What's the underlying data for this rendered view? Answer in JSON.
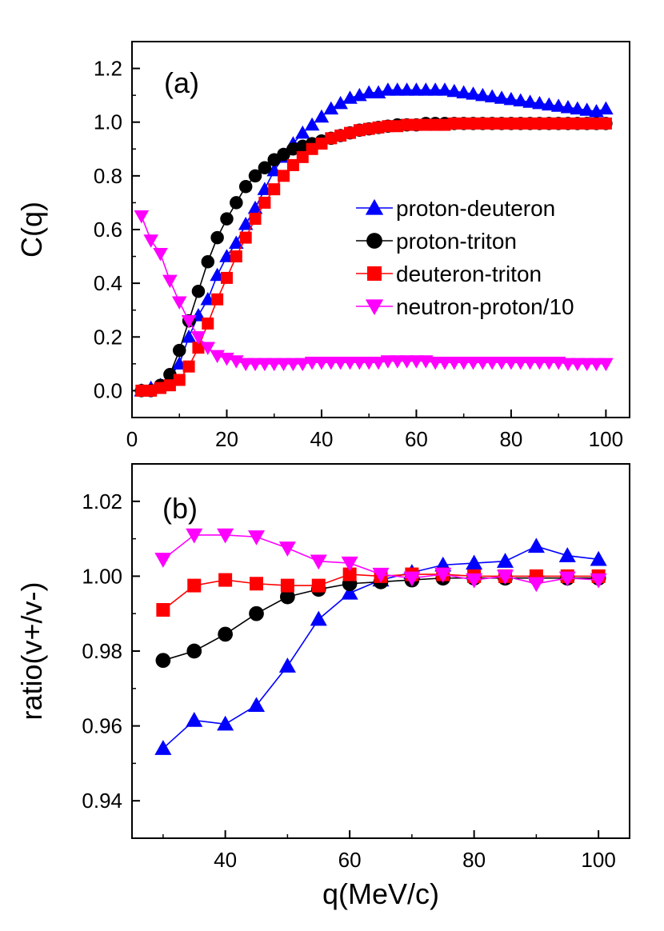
{
  "chart_data": [
    {
      "id": "a",
      "type": "line",
      "panel_label": "(a)",
      "xlabel": "",
      "ylabel": "C(q)",
      "xlim": [
        0,
        105
      ],
      "ylim": [
        -0.1,
        1.3
      ],
      "xticks": [
        0,
        20,
        40,
        60,
        80,
        100
      ],
      "yticks": [
        0.0,
        0.2,
        0.4,
        0.6,
        0.8,
        1.0,
        1.2
      ],
      "xtick_labels": [
        "0",
        "20",
        "40",
        "60",
        "80",
        "100"
      ],
      "ytick_labels": [
        "0.0",
        "0.2",
        "0.4",
        "0.6",
        "0.8",
        "1.0",
        "1.2"
      ],
      "grid": false,
      "legend_position": "right",
      "series": [
        {
          "name": "proton-deuteron",
          "color": "#0000ff",
          "marker": "triangle-up",
          "x": [
            2,
            4,
            6,
            8,
            10,
            12,
            14,
            16,
            18,
            20,
            22,
            24,
            26,
            28,
            30,
            32,
            34,
            36,
            38,
            40,
            42,
            44,
            46,
            48,
            50,
            52,
            54,
            56,
            58,
            60,
            62,
            64,
            66,
            68,
            70,
            72,
            74,
            76,
            78,
            80,
            82,
            84,
            86,
            88,
            90,
            92,
            94,
            96,
            98,
            100
          ],
          "y": [
            0.0,
            0.01,
            0.02,
            0.05,
            0.1,
            0.2,
            0.28,
            0.34,
            0.43,
            0.5,
            0.55,
            0.62,
            0.68,
            0.75,
            0.82,
            0.87,
            0.92,
            0.96,
            0.99,
            1.02,
            1.05,
            1.07,
            1.09,
            1.1,
            1.11,
            1.11,
            1.12,
            1.12,
            1.12,
            1.12,
            1.12,
            1.12,
            1.12,
            1.115,
            1.11,
            1.105,
            1.1,
            1.095,
            1.09,
            1.085,
            1.08,
            1.075,
            1.07,
            1.065,
            1.06,
            1.055,
            1.05,
            1.045,
            1.04,
            1.05
          ]
        },
        {
          "name": "proton-triton",
          "color": "#000000",
          "marker": "circle",
          "x": [
            2,
            4,
            6,
            8,
            10,
            12,
            14,
            16,
            18,
            20,
            22,
            24,
            26,
            28,
            30,
            32,
            34,
            36,
            38,
            40,
            42,
            44,
            46,
            48,
            50,
            52,
            54,
            56,
            58,
            60,
            62,
            64,
            66,
            68,
            70,
            72,
            74,
            76,
            78,
            80,
            82,
            84,
            86,
            88,
            90,
            92,
            94,
            96,
            98,
            100
          ],
          "y": [
            0.0,
            0.0,
            0.02,
            0.06,
            0.15,
            0.26,
            0.37,
            0.48,
            0.57,
            0.64,
            0.7,
            0.76,
            0.8,
            0.83,
            0.86,
            0.88,
            0.9,
            0.91,
            0.92,
            0.93,
            0.94,
            0.95,
            0.96,
            0.97,
            0.975,
            0.98,
            0.985,
            0.99,
            0.99,
            0.99,
            0.995,
            0.995,
            0.995,
            0.995,
            0.995,
            0.995,
            0.995,
            0.995,
            0.995,
            0.995,
            0.995,
            0.995,
            0.995,
            0.995,
            0.995,
            0.995,
            0.995,
            0.995,
            0.995,
            0.995
          ]
        },
        {
          "name": "deuteron-triton",
          "color": "#ff0000",
          "marker": "square",
          "x": [
            2,
            4,
            6,
            8,
            10,
            12,
            14,
            16,
            18,
            20,
            22,
            24,
            26,
            28,
            30,
            32,
            34,
            36,
            38,
            40,
            42,
            44,
            46,
            48,
            50,
            52,
            54,
            56,
            58,
            60,
            62,
            64,
            66,
            68,
            70,
            72,
            74,
            76,
            78,
            80,
            82,
            84,
            86,
            88,
            90,
            92,
            94,
            96,
            98,
            100
          ],
          "y": [
            0.0,
            0.0,
            0.01,
            0.02,
            0.04,
            0.09,
            0.16,
            0.25,
            0.34,
            0.42,
            0.5,
            0.57,
            0.64,
            0.7,
            0.75,
            0.8,
            0.84,
            0.87,
            0.9,
            0.92,
            0.94,
            0.95,
            0.96,
            0.97,
            0.975,
            0.98,
            0.985,
            0.985,
            0.99,
            0.99,
            0.99,
            0.99,
            0.99,
            0.995,
            0.995,
            0.995,
            0.995,
            0.995,
            0.995,
            0.995,
            0.995,
            0.995,
            0.995,
            0.995,
            0.995,
            0.995,
            0.995,
            0.995,
            0.995,
            0.995
          ]
        },
        {
          "name": "neutron-proton/10",
          "color": "#ff00ff",
          "marker": "triangle-down",
          "x": [
            2,
            4,
            6,
            8,
            10,
            12,
            14,
            16,
            18,
            20,
            22,
            24,
            26,
            28,
            30,
            32,
            34,
            36,
            38,
            40,
            42,
            44,
            46,
            48,
            50,
            52,
            54,
            56,
            58,
            60,
            62,
            64,
            66,
            68,
            70,
            72,
            74,
            76,
            78,
            80,
            82,
            84,
            86,
            88,
            90,
            92,
            94,
            96,
            98,
            100
          ],
          "y": [
            0.65,
            0.56,
            0.51,
            0.41,
            0.33,
            0.26,
            0.2,
            0.16,
            0.13,
            0.12,
            0.11,
            0.1,
            0.1,
            0.1,
            0.1,
            0.1,
            0.1,
            0.1,
            0.105,
            0.105,
            0.105,
            0.105,
            0.105,
            0.105,
            0.105,
            0.105,
            0.11,
            0.11,
            0.11,
            0.11,
            0.11,
            0.105,
            0.105,
            0.105,
            0.105,
            0.105,
            0.105,
            0.105,
            0.105,
            0.105,
            0.105,
            0.105,
            0.105,
            0.105,
            0.105,
            0.1,
            0.1,
            0.1,
            0.1,
            0.1
          ]
        }
      ]
    },
    {
      "id": "b",
      "type": "line",
      "panel_label": "(b)",
      "xlabel": "q(MeV/c)",
      "ylabel": "ratio(v+/v-)",
      "xlim": [
        25,
        105
      ],
      "ylim": [
        0.93,
        1.03
      ],
      "xticks": [
        40,
        60,
        80,
        100
      ],
      "yticks": [
        0.94,
        0.96,
        0.98,
        1.0,
        1.02
      ],
      "xtick_labels": [
        "40",
        "60",
        "80",
        "100"
      ],
      "ytick_labels": [
        "0.94",
        "0.96",
        "0.98",
        "1.00",
        "1.02"
      ],
      "grid": false,
      "series": [
        {
          "color": "#0000ff",
          "marker": "triangle-up",
          "x": [
            30,
            35,
            40,
            45,
            50,
            55,
            60,
            65,
            70,
            75,
            80,
            85,
            90,
            95,
            100
          ],
          "y": [
            0.954,
            0.9615,
            0.9605,
            0.9655,
            0.976,
            0.9885,
            0.9955,
            0.999,
            1.001,
            1.003,
            1.0035,
            1.004,
            1.008,
            1.0055,
            1.0045
          ]
        },
        {
          "color": "#000000",
          "marker": "circle",
          "x": [
            30,
            35,
            40,
            45,
            50,
            55,
            60,
            65,
            70,
            75,
            80,
            85,
            90,
            95,
            100
          ],
          "y": [
            0.9775,
            0.98,
            0.9845,
            0.99,
            0.9945,
            0.9965,
            0.998,
            0.9985,
            0.999,
            0.9995,
            0.9995,
            0.9995,
            0.9995,
            0.9995,
            0.9995
          ]
        },
        {
          "color": "#ff0000",
          "marker": "square",
          "x": [
            30,
            35,
            40,
            45,
            50,
            55,
            60,
            65,
            70,
            75,
            80,
            85,
            90,
            95,
            100
          ],
          "y": [
            0.991,
            0.9975,
            0.999,
            0.998,
            0.9975,
            0.9975,
            1.0005,
            1.0,
            1.0005,
            1.0005,
            1.0,
            1.0,
            1.0,
            1.0,
            1.0
          ]
        },
        {
          "color": "#ff00ff",
          "marker": "triangle-down",
          "x": [
            30,
            35,
            40,
            45,
            50,
            55,
            60,
            65,
            70,
            75,
            80,
            85,
            90,
            95,
            100
          ],
          "y": [
            1.0045,
            1.011,
            1.011,
            1.0105,
            1.0075,
            1.004,
            1.0035,
            1.0005,
            0.9995,
            1.0005,
            0.999,
            1.0,
            0.998,
            0.9995,
            0.999
          ]
        }
      ]
    }
  ]
}
